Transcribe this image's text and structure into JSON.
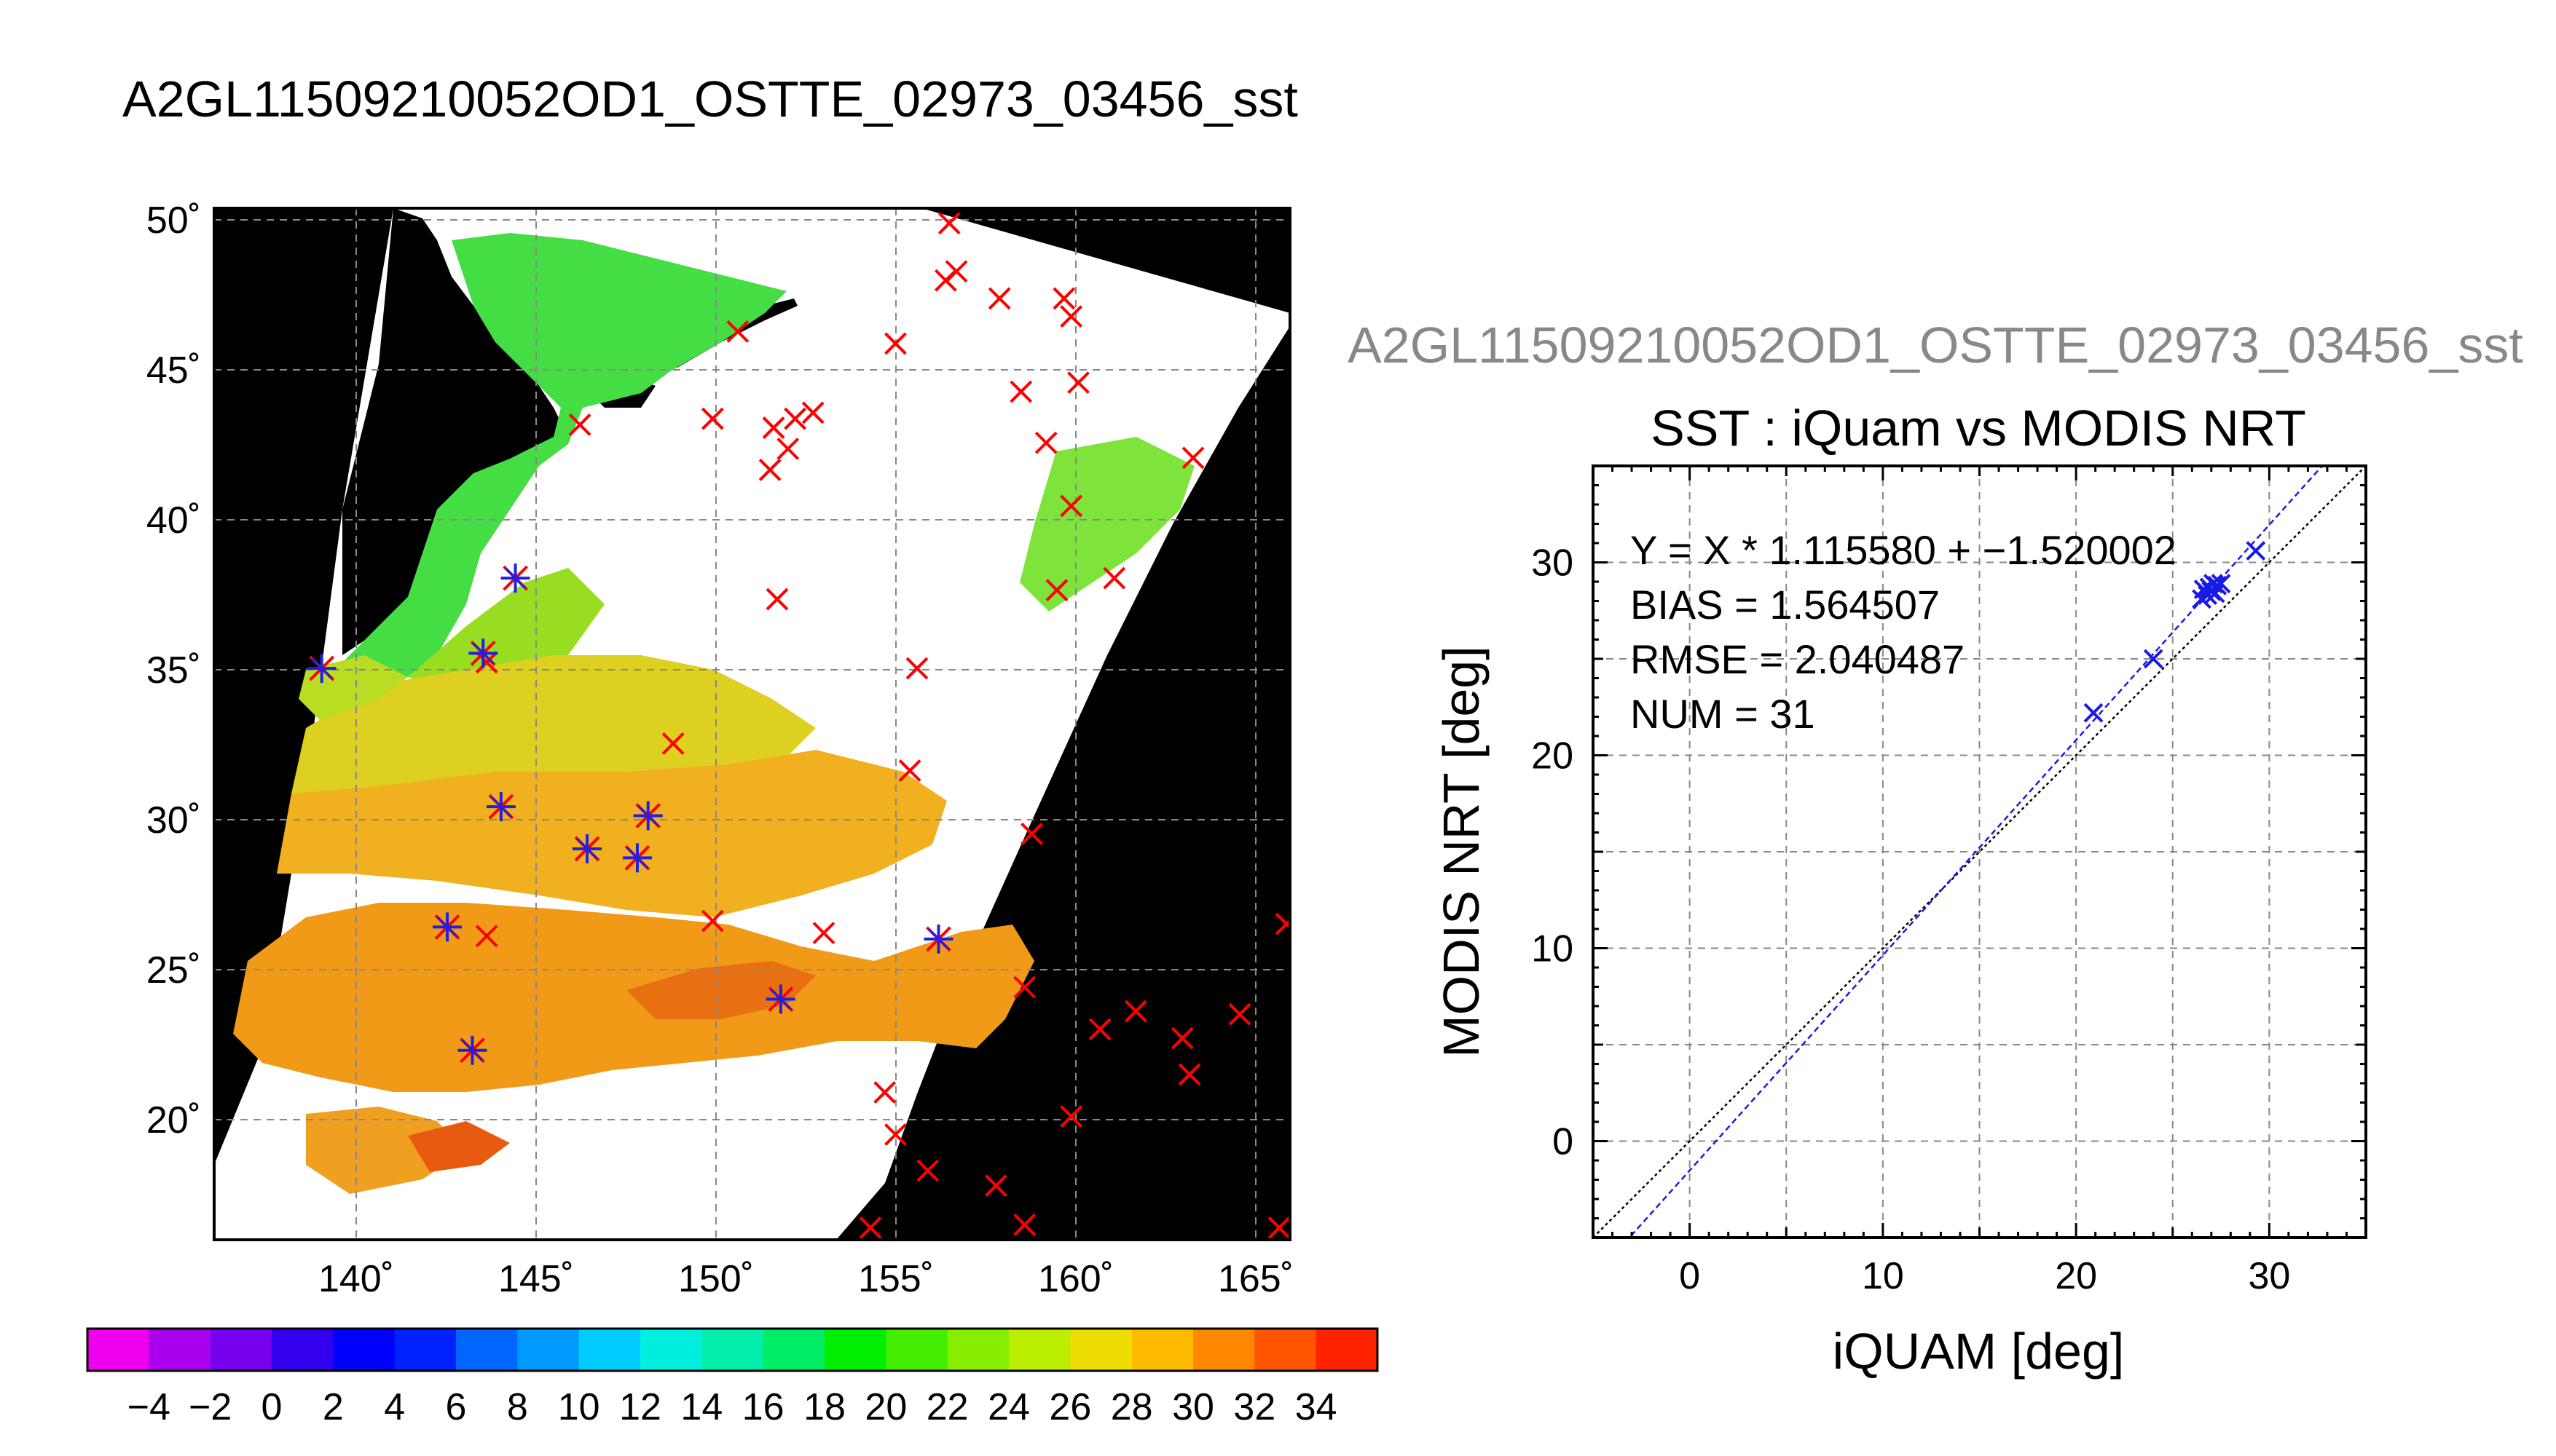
{
  "main_title": "A2GL11509210052OD1_OSTTE_02973_03456_sst",
  "map": {
    "lat_ticks": [
      "50˚",
      "45˚",
      "40˚",
      "35˚",
      "30˚",
      "25˚",
      "20˚"
    ],
    "lon_ticks": [
      "140˚",
      "145˚",
      "150˚",
      "155˚",
      "160˚",
      "165˚"
    ],
    "colors": {
      "land": "#000000",
      "cloud": "#ffffff",
      "grid": "#808080",
      "marker_red": "#ff0000",
      "marker_blue": "#2020e0"
    }
  },
  "colorbar": {
    "tick_labels": [
      "−4",
      "−2",
      "0",
      "2",
      "4",
      "6",
      "8",
      "10",
      "12",
      "14",
      "16",
      "18",
      "20",
      "22",
      "24",
      "26",
      "28",
      "30",
      "32",
      "34"
    ]
  },
  "chart_data": [
    {
      "type": "map",
      "xlim": [
        136,
        166
      ],
      "ylim": [
        16,
        50
      ],
      "grid": true,
      "match_points": [
        {
          "lon": 139,
          "lat": 35
        },
        {
          "lon": 143.5,
          "lat": 35.5
        },
        {
          "lon": 144.4,
          "lat": 38
        },
        {
          "lon": 144,
          "lat": 30.4
        },
        {
          "lon": 146.4,
          "lat": 29
        },
        {
          "lon": 147.8,
          "lat": 28.7
        },
        {
          "lon": 148.1,
          "lat": 30.1
        },
        {
          "lon": 142.5,
          "lat": 26.4
        },
        {
          "lon": 143.2,
          "lat": 22.3
        },
        {
          "lon": 151.8,
          "lat": 24
        },
        {
          "lon": 156.2,
          "lat": 26
        }
      ],
      "other_points": [
        {
          "lon": 156.5,
          "lat": 49.8
        },
        {
          "lon": 156.7,
          "lat": 48.2
        },
        {
          "lon": 156.4,
          "lat": 47.9
        },
        {
          "lon": 157.9,
          "lat": 47.3
        },
        {
          "lon": 159.7,
          "lat": 47.3
        },
        {
          "lon": 159.9,
          "lat": 46.7
        },
        {
          "lon": 155.0,
          "lat": 45.8
        },
        {
          "lon": 150.6,
          "lat": 46.2
        },
        {
          "lon": 158.5,
          "lat": 44.2
        },
        {
          "lon": 160.1,
          "lat": 44.5
        },
        {
          "lon": 149.9,
          "lat": 43.3
        },
        {
          "lon": 151.6,
          "lat": 43.0
        },
        {
          "lon": 152.2,
          "lat": 43.3
        },
        {
          "lon": 152.7,
          "lat": 43.5
        },
        {
          "lon": 152.0,
          "lat": 42.3
        },
        {
          "lon": 151.5,
          "lat": 41.6
        },
        {
          "lon": 159.2,
          "lat": 42.5
        },
        {
          "lon": 146.2,
          "lat": 43.1
        },
        {
          "lon": 163.3,
          "lat": 42.0
        },
        {
          "lon": 159.9,
          "lat": 40.4
        },
        {
          "lon": 161.1,
          "lat": 38.0
        },
        {
          "lon": 159.5,
          "lat": 37.6
        },
        {
          "lon": 151.7,
          "lat": 37.3
        },
        {
          "lon": 143.6,
          "lat": 35.2
        },
        {
          "lon": 155.6,
          "lat": 35.0
        },
        {
          "lon": 148.8,
          "lat": 32.5
        },
        {
          "lon": 155.4,
          "lat": 31.6
        },
        {
          "lon": 158.8,
          "lat": 29.5
        },
        {
          "lon": 149.9,
          "lat": 26.6
        },
        {
          "lon": 153.0,
          "lat": 26.2
        },
        {
          "lon": 143.6,
          "lat": 26.1
        },
        {
          "lon": 158.6,
          "lat": 24.4
        },
        {
          "lon": 160.7,
          "lat": 23.0
        },
        {
          "lon": 161.7,
          "lat": 23.6
        },
        {
          "lon": 163.0,
          "lat": 22.7
        },
        {
          "lon": 164.6,
          "lat": 23.5
        },
        {
          "lon": 165.9,
          "lat": 26.5
        },
        {
          "lon": 163.2,
          "lat": 21.5
        },
        {
          "lon": 154.7,
          "lat": 20.9
        },
        {
          "lon": 159.9,
          "lat": 20.1
        },
        {
          "lon": 155.0,
          "lat": 19.5
        },
        {
          "lon": 155.9,
          "lat": 18.3
        },
        {
          "lon": 157.8,
          "lat": 17.8
        },
        {
          "lon": 158.6,
          "lat": 16.5
        },
        {
          "lon": 165.7,
          "lat": 16.4
        },
        {
          "lon": 154.3,
          "lat": 16.4
        }
      ]
    },
    {
      "type": "scatter",
      "title": "SST : iQuam vs MODIS NRT",
      "xlabel": "iQUAM [deg]",
      "ylabel": "MODIS NRT [deg]",
      "xlim": [
        -5,
        35
      ],
      "ylim": [
        -5,
        35
      ],
      "grid": true,
      "xticks": [
        0,
        10,
        20,
        30
      ],
      "yticks": [
        0,
        10,
        20,
        30
      ],
      "points": [
        {
          "x": 20.9,
          "y": 22.2
        },
        {
          "x": 24.0,
          "y": 25.0
        },
        {
          "x": 26.5,
          "y": 28.1
        },
        {
          "x": 26.6,
          "y": 28.6
        },
        {
          "x": 26.8,
          "y": 28.3
        },
        {
          "x": 26.9,
          "y": 28.7
        },
        {
          "x": 27.0,
          "y": 28.5
        },
        {
          "x": 27.1,
          "y": 28.9
        },
        {
          "x": 27.2,
          "y": 28.4
        },
        {
          "x": 27.3,
          "y": 28.8
        },
        {
          "x": 27.5,
          "y": 28.9
        },
        {
          "x": 29.3,
          "y": 30.6
        }
      ],
      "fit": {
        "slope": 1.11558,
        "intercept": -1.520002
      },
      "annotations": [
        "Y = X * 1.115580 + −1.520002",
        "BIAS = 1.564507",
        "RMSE = 2.040487",
        "NUM = 31"
      ]
    }
  ]
}
